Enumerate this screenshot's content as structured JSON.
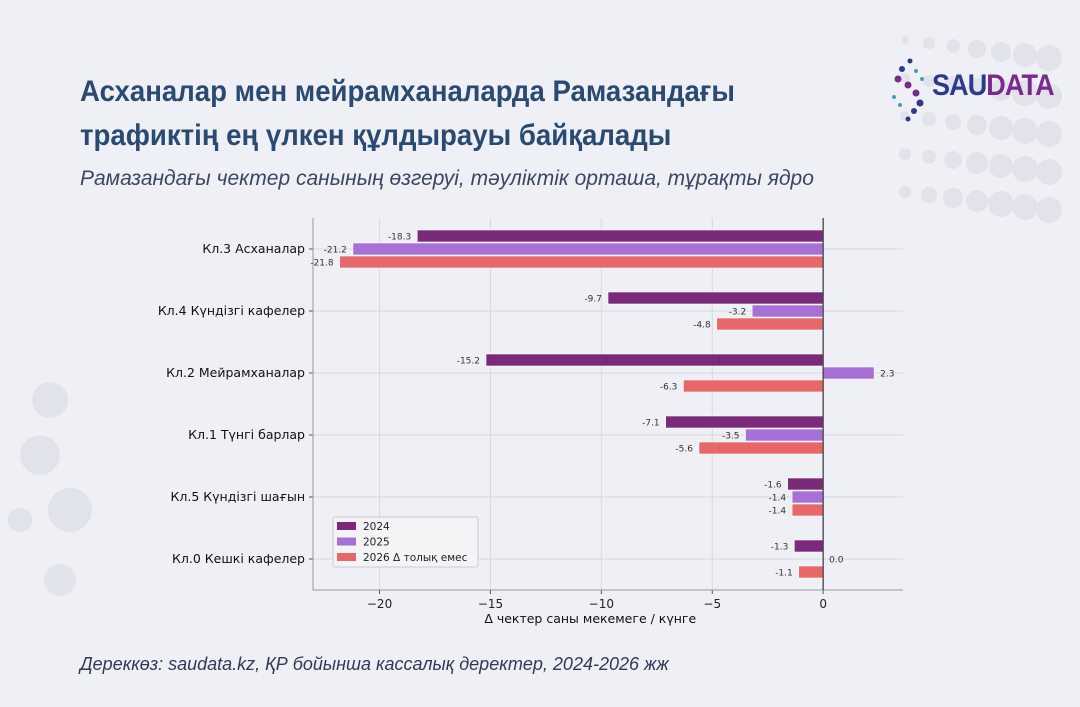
{
  "header": {
    "title": "Асханалар мен мейрамханаларда Рамазандағы трафиктің ең үлкен құлдырауы байқалады",
    "subtitle": "Рамазандағы чектер санының өзгеруі, тәуліктік орташа, тұрақты ядро"
  },
  "logo": {
    "text_part1": "SAU",
    "text_part2": "DATA",
    "color1": "#2b3a8c",
    "color2": "#7a2a8a"
  },
  "footer": {
    "source": "Дереккөз: saudata.kz, ҚР бойынша кассалық деректер, 2024-2026 жж"
  },
  "chart_data": {
    "type": "bar",
    "orientation": "horizontal",
    "categories": [
      "Кл.3 Асханалар",
      "Кл.4 Күндізгі кафелер",
      "Кл.2 Мейрамханалар",
      "Кл.1 Түнгі барлар",
      "Кл.5 Күндізгі шағын",
      "Кл.0 Кешкі кафелер"
    ],
    "series": [
      {
        "name": "2024",
        "color": "#7b2a7a",
        "values": [
          -18.3,
          -9.7,
          -15.2,
          -7.1,
          -1.6,
          -1.3
        ],
        "labels": [
          "-18.3",
          "-9.7",
          "-15.2",
          "-7.1",
          "-1.6",
          "-1.3"
        ]
      },
      {
        "name": "2025",
        "color": "#a86fd6",
        "values": [
          -21.2,
          -3.2,
          2.3,
          -3.5,
          -1.4,
          0.0
        ],
        "labels": [
          "-21.2",
          "-3.2",
          "2.3",
          "-3.5",
          "-1.4",
          "0.0"
        ]
      },
      {
        "name": "2026 Δ толық емес",
        "color": "#e8686a",
        "values": [
          -21.8,
          -4.8,
          -6.3,
          -5.6,
          -1.4,
          -1.1
        ],
        "labels": [
          "-21.8",
          "-4.8",
          "-6.3",
          "-5.6",
          "-1.4",
          "-1.1"
        ]
      }
    ],
    "xlabel": "Δ чектер саны мекемеге / күнге",
    "xlim": [
      -23,
      3.6
    ],
    "xticks": [
      -20,
      -15,
      -10,
      -5,
      0
    ],
    "xtick_labels": [
      "−20",
      "−15",
      "−10",
      "−5",
      "0"
    ],
    "grid": true,
    "legend": "lower-left"
  }
}
